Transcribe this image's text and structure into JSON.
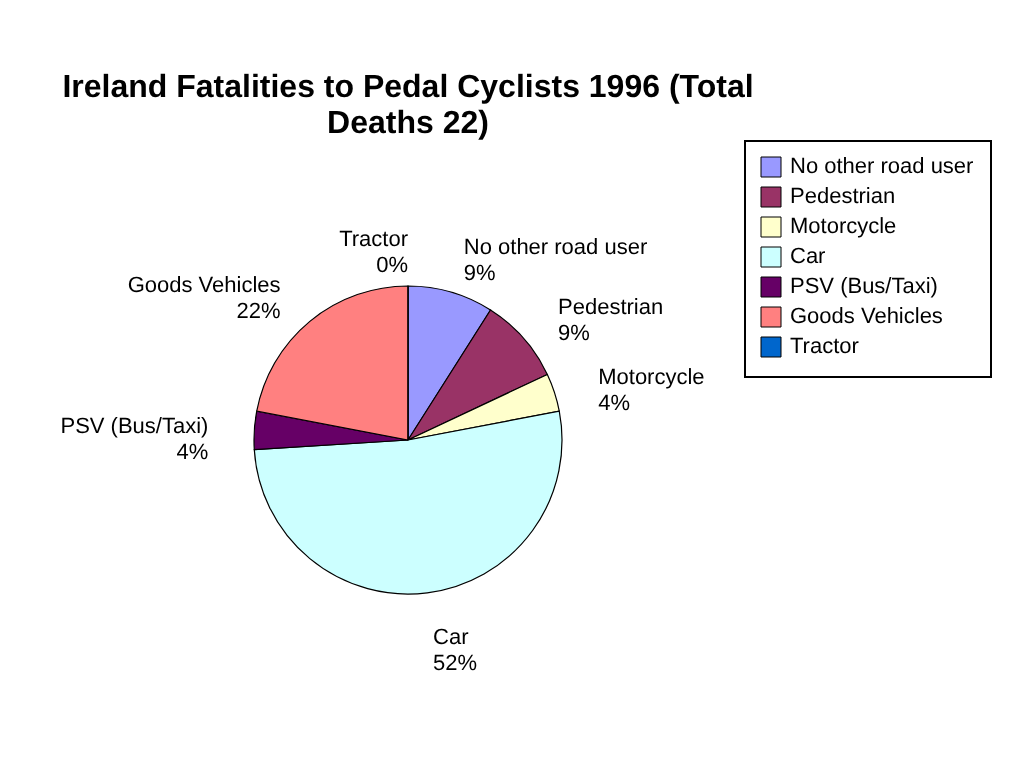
{
  "chart_data": {
    "type": "pie",
    "title": [
      "Ireland Fatalities to Pedal Cyclists 1996 (Total",
      "Deaths 22)"
    ],
    "categories": [
      "No other road user",
      "Pedestrian",
      "Motorcycle",
      "Car",
      "PSV (Bus/Taxi)",
      "Goods Vehicles",
      "Tractor"
    ],
    "values": [
      9,
      9,
      4,
      52,
      4,
      22,
      0
    ],
    "value_labels": [
      "9%",
      "9%",
      "4%",
      "52%",
      "4%",
      "22%",
      "0%"
    ],
    "colors": [
      "#9999ff",
      "#993366",
      "#ffffcc",
      "#ccffff",
      "#660066",
      "#ff8080",
      "#0066cc"
    ],
    "legend": "right"
  }
}
